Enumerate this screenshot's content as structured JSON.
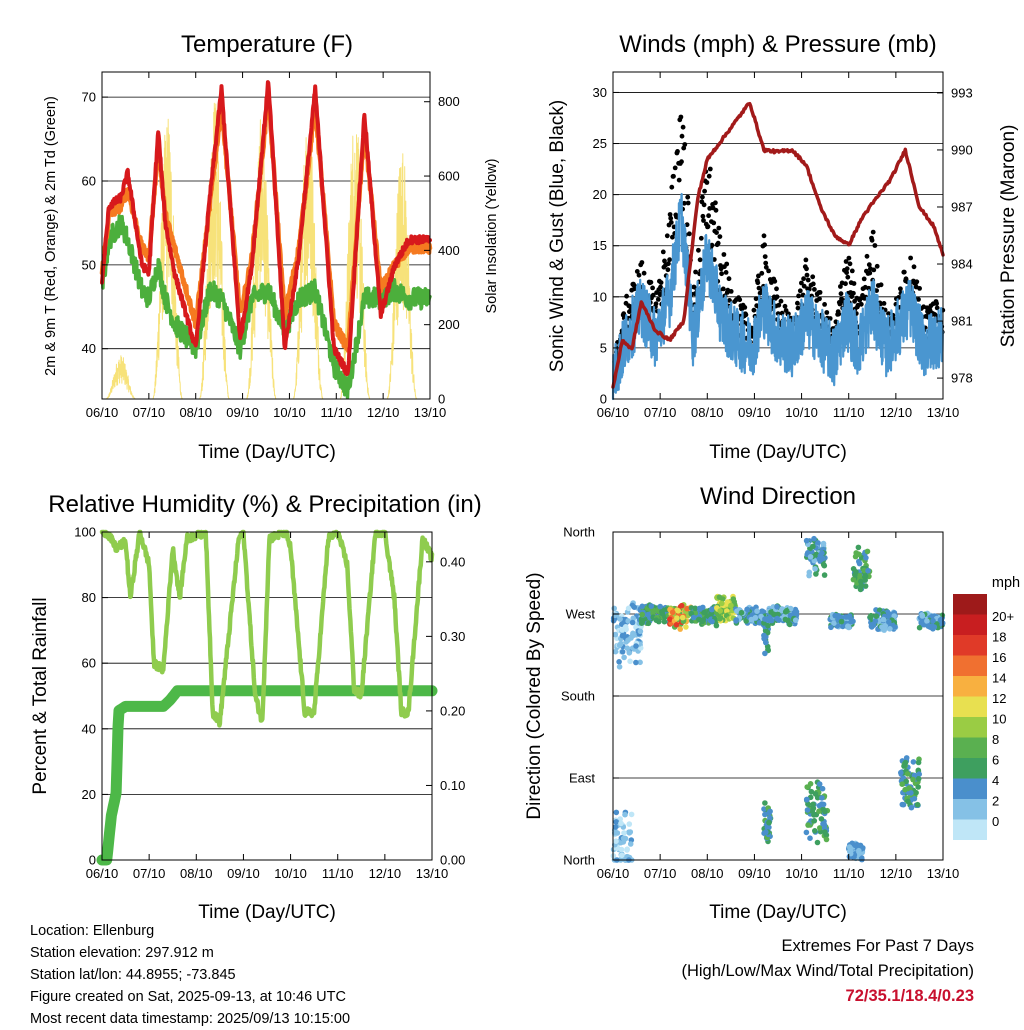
{
  "x_ticks": [
    "06/10",
    "07/10",
    "08/10",
    "09/10",
    "10/10",
    "11/10",
    "12/10",
    "13/10"
  ],
  "colors": {
    "temp_2m": "#d7191c",
    "temp_9m": "#f57a20",
    "dewpoint": "#4caf3c",
    "solar": "#f7e27a",
    "wind": "#4a96d0",
    "gust": "#000000",
    "pressure": "#a21a1a",
    "rh": "#8fcc4e",
    "precip": "#4db848"
  },
  "panels": {
    "temperature": {
      "title": "Temperature (F)",
      "ylabel_left": "2m & 9m T (Red, Orange) & 2m Td (Green)",
      "ylabel_right": "Solar Insolation (Yellow)",
      "xlabel": "Time (Day/UTC)",
      "left_ticks": [
        "40",
        "50",
        "60",
        "70"
      ],
      "right_ticks": [
        "0",
        "200",
        "400",
        "600",
        "800"
      ]
    },
    "winds": {
      "title": "Winds (mph) & Pressure (mb)",
      "ylabel_left": "Sonic Wind & Gust (Blue, Black)",
      "ylabel_right": "Station Pressure (Maroon)",
      "xlabel": "Time (Day/UTC)",
      "left_ticks": [
        "0",
        "5",
        "10",
        "15",
        "20",
        "25",
        "30"
      ],
      "right_ticks": [
        "978",
        "981",
        "984",
        "987",
        "990",
        "993"
      ]
    },
    "humidity": {
      "title": "Relative Humidity (%) & Precipitation (in)",
      "ylabel_left": "Percent & Total Rainfall",
      "xlabel": "Time (Day/UTC)",
      "left_ticks": [
        "0",
        "20",
        "40",
        "60",
        "80",
        "100"
      ],
      "right_ticks": [
        "0.00",
        "0.10",
        "0.20",
        "0.30",
        "0.40"
      ]
    },
    "direction": {
      "title": "Wind Direction",
      "ylabel_left": "Direction (Colored By Speed)",
      "xlabel": "Time (Day/UTC)",
      "dir_ticks": [
        "North",
        "East",
        "South",
        "West",
        "North"
      ],
      "legend_title": "mph",
      "legend_labels": [
        "0",
        "2",
        "4",
        "6",
        "8",
        "10",
        "12",
        "14",
        "16",
        "18",
        "20+"
      ],
      "legend_colors": [
        "#bfe6f7",
        "#85c1e6",
        "#4a8fcc",
        "#3e9f5f",
        "#5ab050",
        "#9acc44",
        "#e8e050",
        "#f8b040",
        "#f07030",
        "#e03a28",
        "#c81e20",
        "#9e1a1a"
      ]
    }
  },
  "footer": {
    "location": "Location: Ellenburg",
    "elevation": "Station elevation: 297.912 m",
    "latlon": "Station lat/lon: 44.8955; -73.845",
    "created": "Figure created on Sat, 2025-09-13, at 10:46 UTC",
    "recent": "Most recent data timestamp: 2025/09/13 10:15:00"
  },
  "extremes": {
    "line1": "Extremes For Past 7 Days",
    "line2": "(High/Low/Max Wind/Total Precipitation)",
    "values": "72/35.1/18.4/0.23"
  },
  "chart_data": [
    {
      "type": "line",
      "title": "Temperature (F)",
      "xlabel": "Time (Day/UTC)",
      "xlim": [
        0,
        7
      ],
      "ylim": [
        34,
        73
      ],
      "y2lim": [
        0,
        880
      ],
      "grid": true,
      "x_anchor_days": [
        0,
        0.15,
        0.4,
        0.55,
        0.85,
        1.0,
        1.2,
        1.35,
        1.55,
        2.0,
        2.3,
        2.55,
        2.95,
        3.2,
        3.55,
        3.9,
        4.2,
        4.55,
        4.95,
        5.25,
        5.6,
        5.95,
        6.25,
        6.55,
        7.0
      ],
      "series": [
        {
          "name": "2m T (Red)",
          "axis": "left",
          "values": [
            48,
            57,
            58,
            61,
            50,
            49,
            66,
            55,
            49,
            40,
            58,
            71,
            41,
            50,
            72,
            40,
            51,
            71,
            40,
            37,
            68,
            44,
            50,
            53,
            53
          ]
        },
        {
          "name": "9m T (Orange)",
          "axis": "left",
          "values": [
            49,
            56,
            57,
            59,
            52,
            51,
            64,
            56,
            52,
            43,
            57,
            69,
            44,
            51,
            70,
            44,
            52,
            69,
            43,
            40,
            66,
            47,
            50,
            52,
            52
          ]
        },
        {
          "name": "2m Td (Green)",
          "axis": "left",
          "values": [
            47,
            53,
            55,
            53,
            47,
            46,
            50,
            46,
            43,
            40,
            47,
            46,
            40,
            46,
            47,
            42,
            46,
            47,
            38,
            35,
            46,
            46,
            47,
            46,
            46
          ]
        },
        {
          "name": "Solar Insolation (Yellow)",
          "axis": "right",
          "day_peaks": [
            {
              "center": 0.4,
              "peak": 120
            },
            {
              "center": 1.4,
              "peak": 780
            },
            {
              "center": 2.4,
              "peak": 830
            },
            {
              "center": 3.4,
              "peak": 760
            },
            {
              "center": 4.4,
              "peak": 820
            },
            {
              "center": 5.4,
              "peak": 790
            },
            {
              "center": 6.4,
              "peak": 700
            }
          ]
        }
      ]
    },
    {
      "type": "line",
      "title": "Winds (mph) & Pressure (mb)",
      "xlabel": "Time (Day/UTC)",
      "xlim": [
        0,
        7
      ],
      "ylim": [
        0,
        32
      ],
      "y2lim": [
        976.9,
        994.1
      ],
      "grid": true,
      "x_anchor_days": [
        0,
        0.3,
        0.6,
        0.9,
        1.2,
        1.45,
        1.7,
        2.0,
        2.3,
        2.6,
        2.95,
        3.2,
        3.5,
        3.8,
        4.1,
        4.4,
        4.7,
        4.95,
        5.2,
        5.5,
        5.8,
        6.05,
        6.3,
        6.6,
        6.85,
        7.0
      ],
      "series": [
        {
          "name": "Sonic Wind (Blue)",
          "axis": "left",
          "values": [
            2,
            6,
            9,
            6,
            10,
            18,
            6,
            14,
            8,
            6,
            5,
            9,
            6,
            5,
            8,
            6,
            4,
            8,
            5,
            9,
            5,
            7,
            9,
            5,
            6,
            6
          ]
        },
        {
          "name": "Gust (Black)",
          "axis": "left",
          "values": [
            3,
            9,
            12,
            9,
            16,
            28,
            9,
            22,
            13,
            9,
            7,
            14,
            9,
            7,
            12,
            9,
            6,
            14,
            8,
            15,
            7,
            9,
            13,
            8,
            9,
            8
          ]
        },
        {
          "name": "Station Pressure (Maroon)",
          "axis": "right",
          "x": [
            0,
            0.2,
            0.4,
            0.6,
            0.9,
            1.2,
            1.5,
            1.8,
            2.0,
            2.3,
            2.6,
            2.9,
            3.2,
            3.5,
            3.8,
            4.1,
            4.4,
            4.7,
            5.0,
            5.3,
            5.6,
            5.9,
            6.2,
            6.5,
            6.8,
            7.0
          ],
          "values": [
            977.5,
            980.0,
            979.5,
            982.0,
            980.5,
            980.0,
            981.0,
            987.5,
            989.5,
            990.5,
            991.5,
            992.5,
            990.0,
            989.9,
            990.0,
            989.2,
            987.0,
            985.5,
            985.0,
            986.5,
            987.5,
            988.5,
            990.0,
            987.0,
            986.0,
            984.5
          ]
        }
      ]
    },
    {
      "type": "line",
      "title": "Relative Humidity (%) & Precipitation (in)",
      "xlabel": "Time (Day/UTC)",
      "xlim": [
        0,
        7
      ],
      "ylim": [
        0,
        100
      ],
      "y2lim": [
        0,
        0.44
      ],
      "grid": true,
      "series": [
        {
          "name": "Relative Humidity",
          "axis": "left",
          "x": [
            0,
            0.1,
            0.3,
            0.5,
            0.6,
            0.8,
            1.0,
            1.1,
            1.3,
            1.5,
            1.65,
            1.8,
            2.2,
            2.35,
            2.5,
            2.9,
            3.0,
            3.25,
            3.4,
            3.55,
            3.9,
            4.0,
            4.3,
            4.5,
            4.8,
            5.0,
            5.2,
            5.35,
            5.5,
            5.8,
            6.0,
            6.2,
            6.35,
            6.5,
            6.8,
            7.0
          ],
          "values": [
            100,
            100,
            95,
            97,
            80,
            100,
            90,
            60,
            58,
            95,
            80,
            98,
            100,
            45,
            42,
            98,
            100,
            50,
            42,
            98,
            100,
            95,
            45,
            45,
            98,
            100,
            90,
            52,
            50,
            100,
            100,
            80,
            45,
            45,
            98,
            92
          ]
        },
        {
          "name": "Total Precipitation",
          "axis": "right",
          "x": [
            0,
            0.1,
            0.2,
            0.3,
            0.35,
            0.5,
            0.8,
            1.3,
            1.45,
            1.6,
            7.0
          ],
          "values": [
            0,
            0,
            0.06,
            0.09,
            0.2,
            0.206,
            0.206,
            0.206,
            0.215,
            0.227,
            0.227
          ]
        }
      ]
    },
    {
      "type": "scatter",
      "title": "Wind Direction",
      "xlabel": "Time (Day/UTC)",
      "xlim": [
        0,
        7
      ],
      "ylim": [
        0,
        360
      ],
      "color_by": "speed (mph)",
      "color_levels": [
        0,
        2,
        4,
        6,
        8,
        10,
        12,
        14,
        16,
        18,
        20
      ],
      "clusters": [
        {
          "x_range": [
            0.0,
            0.6
          ],
          "dir_center": 250,
          "dir_spread": 45,
          "speed": [
            1,
            6
          ]
        },
        {
          "x_range": [
            0.0,
            0.4
          ],
          "dir_center": 20,
          "dir_spread": 40,
          "speed": [
            1,
            5
          ]
        },
        {
          "x_range": [
            0.6,
            1.2
          ],
          "dir_center": 270,
          "dir_spread": 12,
          "speed": [
            4,
            10
          ]
        },
        {
          "x_range": [
            1.2,
            1.65
          ],
          "dir_center": 268,
          "dir_spread": 16,
          "speed": [
            8,
            20
          ]
        },
        {
          "x_range": [
            1.65,
            2.2
          ],
          "dir_center": 268,
          "dir_spread": 12,
          "speed": [
            4,
            9
          ]
        },
        {
          "x_range": [
            2.2,
            2.6
          ],
          "dir_center": 275,
          "dir_spread": 16,
          "speed": [
            8,
            14
          ]
        },
        {
          "x_range": [
            2.6,
            3.2
          ],
          "dir_center": 268,
          "dir_spread": 10,
          "speed": [
            3,
            7
          ]
        },
        {
          "x_range": [
            3.2,
            3.3
          ],
          "dir_center": 245,
          "dir_spread": 30,
          "speed": [
            5,
            8
          ]
        },
        {
          "x_range": [
            3.2,
            3.35
          ],
          "dir_center": 45,
          "dir_spread": 25,
          "speed": [
            4,
            9
          ]
        },
        {
          "x_range": [
            3.3,
            3.9
          ],
          "dir_center": 268,
          "dir_spread": 12,
          "speed": [
            3,
            7
          ]
        },
        {
          "x_range": [
            4.1,
            4.55
          ],
          "dir_center": 55,
          "dir_spread": 40,
          "speed": [
            4,
            10
          ]
        },
        {
          "x_range": [
            4.1,
            4.5
          ],
          "dir_center": 335,
          "dir_spread": 25,
          "speed": [
            3,
            8
          ]
        },
        {
          "x_range": [
            4.6,
            5.1
          ],
          "dir_center": 262,
          "dir_spread": 8,
          "speed": [
            3,
            7
          ]
        },
        {
          "x_range": [
            5.1,
            5.45
          ],
          "dir_center": 320,
          "dir_spread": 28,
          "speed": [
            4,
            10
          ]
        },
        {
          "x_range": [
            5.0,
            5.3
          ],
          "dir_center": 10,
          "dir_spread": 12,
          "speed": [
            3,
            6
          ]
        },
        {
          "x_range": [
            5.45,
            6.0
          ],
          "dir_center": 262,
          "dir_spread": 14,
          "speed": [
            3,
            7
          ]
        },
        {
          "x_range": [
            6.1,
            6.5
          ],
          "dir_center": 85,
          "dir_spread": 35,
          "speed": [
            4,
            10
          ]
        },
        {
          "x_range": [
            6.5,
            7.0
          ],
          "dir_center": 262,
          "dir_spread": 10,
          "speed": [
            3,
            7
          ]
        }
      ]
    }
  ]
}
